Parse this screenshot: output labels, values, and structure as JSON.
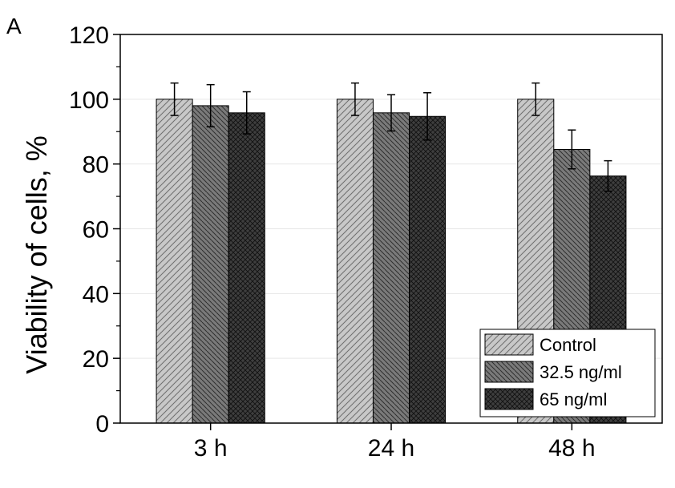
{
  "panel_label": "A",
  "chart_data": {
    "type": "bar",
    "categories": [
      "3 h",
      "24 h",
      "48 h"
    ],
    "series": [
      {
        "name": "Control",
        "values": [
          100,
          100,
          100
        ],
        "errors": [
          5,
          5,
          5
        ],
        "color": "#c8c8c8",
        "pattern": "diagonal-up"
      },
      {
        "name": "32.5 ng/ml",
        "values": [
          98,
          95.8,
          84.5
        ],
        "errors": [
          6.5,
          5.6,
          6
        ],
        "color": "#7a7a7a",
        "pattern": "diagonal-down"
      },
      {
        "name": "65 ng/ml",
        "values": [
          95.8,
          94.7,
          76.3
        ],
        "errors": [
          6.5,
          7.3,
          4.7
        ],
        "color": "#3e3e3e",
        "pattern": "crosshatch"
      }
    ],
    "ylabel": "Viability of cells, %",
    "xlabel": "",
    "ylim": [
      0,
      120
    ],
    "yticks": [
      "0",
      "20",
      "40",
      "60",
      "80",
      "100",
      "120"
    ],
    "grid": "horizontal",
    "legend_position": "bottom-right"
  }
}
